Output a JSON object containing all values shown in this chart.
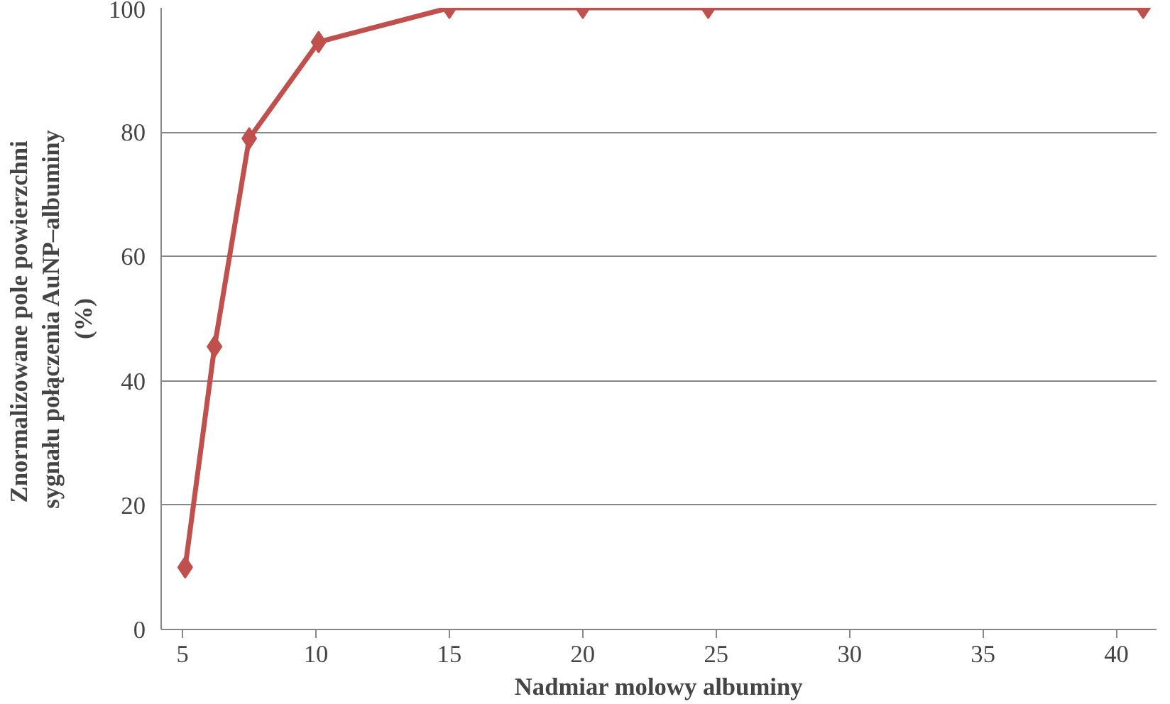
{
  "chart_data": {
    "type": "line",
    "xlabel": "Nadmiar molowy albuminy",
    "ylabel": "Znormalizowane  pole powierzchni\nsygnału połączenia AuNP–albuminy\n(%)",
    "x": [
      5.1,
      6.2,
      7.5,
      10.1,
      15,
      20,
      24.7,
      41
    ],
    "series": [
      {
        "color": "#c0504d",
        "values": [
          10,
          45.5,
          79,
          94.5,
          100,
          100,
          100,
          100
        ]
      }
    ],
    "xlim": [
      4.2,
      41.5
    ],
    "xticks": [
      5,
      10,
      15,
      20,
      25,
      30,
      35,
      40
    ],
    "ylim": [
      0,
      100
    ],
    "yticks": [
      0,
      20,
      40,
      60,
      80,
      100
    ],
    "grid": "y",
    "marker": "diamond",
    "line_style": "solid"
  }
}
